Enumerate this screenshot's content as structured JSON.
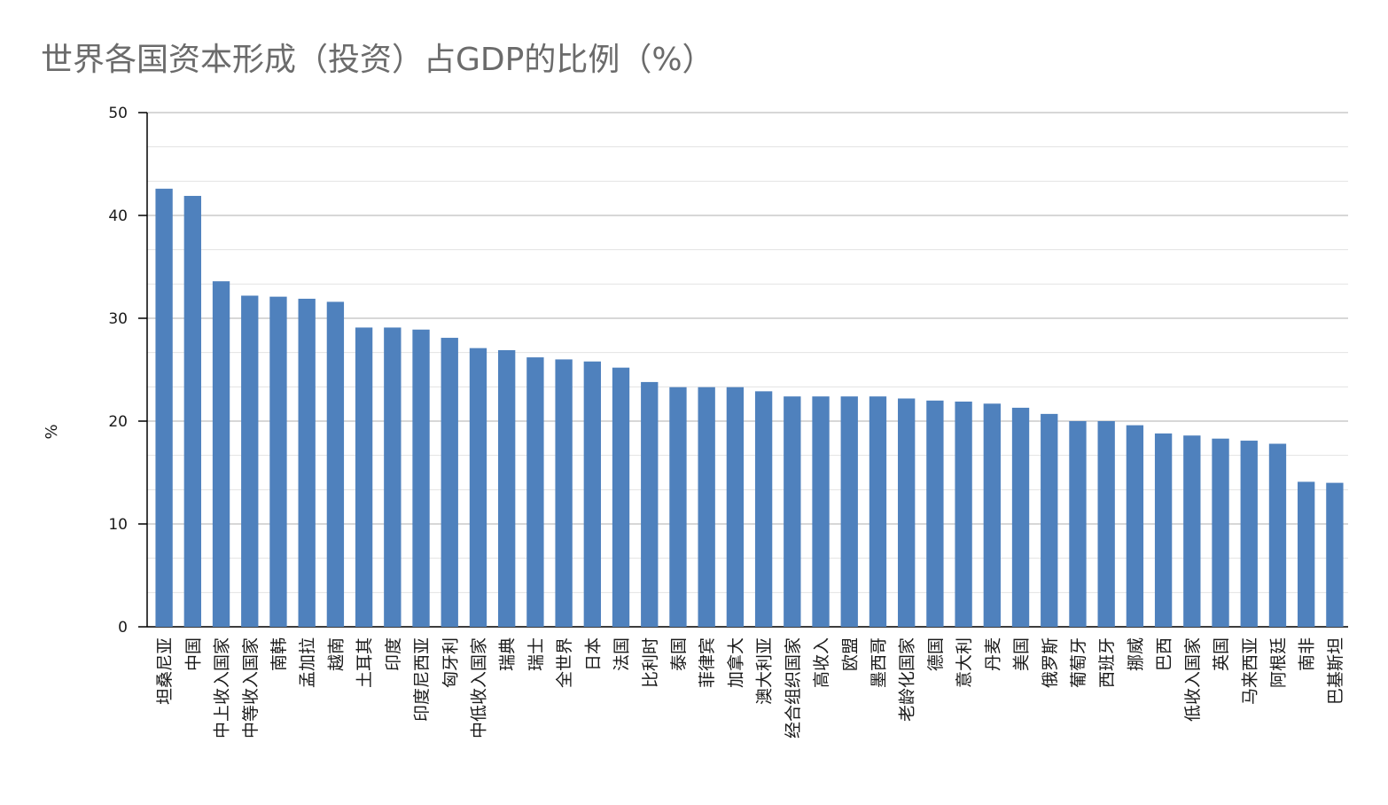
{
  "chart_data": {
    "type": "bar",
    "title": "世界各国资本形成（投资）占GDP的比例（%）",
    "xlabel": "",
    "ylabel": "%",
    "ylim": [
      0,
      50
    ],
    "yticks": [
      0,
      10,
      20,
      30,
      40,
      50
    ],
    "grid": true,
    "bar_color": "#4f81bd",
    "categories": [
      "坦桑尼亚",
      "中国",
      "中上收入国家",
      "中等收入国家",
      "南韩",
      "孟加拉",
      "越南",
      "土耳其",
      "印度",
      "印度尼西亚",
      "匈牙利",
      "中低收入国家",
      "瑞典",
      "瑞士",
      "全世界",
      "日本",
      "法国",
      "比利时",
      "泰国",
      "菲律宾",
      "加拿大",
      "澳大利亚",
      "经合组织国家",
      "高收入",
      "欧盟",
      "墨西哥",
      "老龄化国家",
      "德国",
      "意大利",
      "丹麦",
      "美国",
      "俄罗斯",
      "葡萄牙",
      "西班牙",
      "挪威",
      "巴西",
      "低收入国家",
      "英国",
      "马来西亚",
      "阿根廷",
      "南非",
      "巴基斯坦"
    ],
    "values": [
      42.6,
      41.9,
      33.6,
      32.2,
      32.1,
      31.9,
      31.6,
      29.1,
      29.1,
      28.9,
      28.1,
      27.1,
      26.9,
      26.2,
      26.0,
      25.8,
      25.2,
      23.8,
      23.3,
      23.3,
      23.3,
      22.9,
      22.4,
      22.4,
      22.4,
      22.4,
      22.2,
      22.0,
      21.9,
      21.7,
      21.3,
      20.7,
      20.0,
      20.0,
      19.6,
      18.8,
      18.6,
      18.3,
      18.1,
      17.8,
      14.1,
      14.0
    ]
  }
}
